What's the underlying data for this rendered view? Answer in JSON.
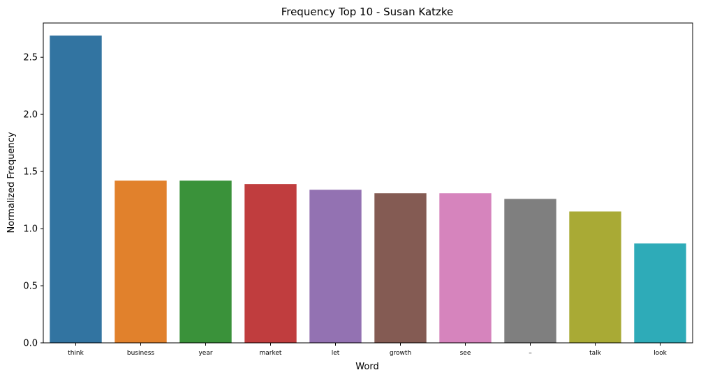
{
  "chart_data": {
    "type": "bar",
    "title": "Frequency Top 10 - Susan Katzke",
    "xlabel": "Word",
    "ylabel": "Normalized Frequency",
    "categories": [
      "think",
      "business",
      "year",
      "market",
      "let",
      "growth",
      "see",
      "–",
      "talk",
      "look"
    ],
    "values": [
      2.69,
      1.42,
      1.42,
      1.39,
      1.34,
      1.31,
      1.31,
      1.26,
      1.15,
      0.87
    ],
    "colors": [
      "#3274a1",
      "#e1812c",
      "#3a923a",
      "#c03d3e",
      "#9372b2",
      "#845b53",
      "#d684bd",
      "#7f7f7f",
      "#a9aa35",
      "#2eabb8"
    ],
    "ylim": [
      0,
      2.8
    ],
    "yticks": [
      "0.0",
      "0.5",
      "1.0",
      "1.5",
      "2.0",
      "2.5"
    ],
    "grid": false,
    "legend": "none"
  }
}
